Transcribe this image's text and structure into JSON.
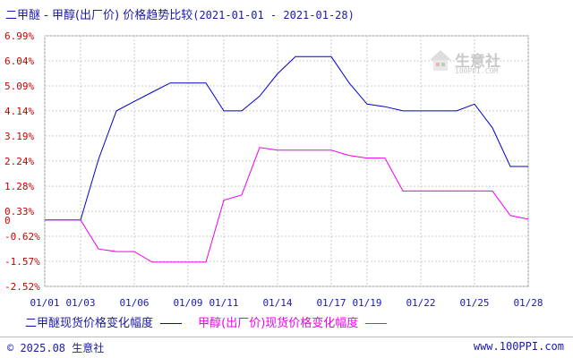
{
  "header": {
    "title": "二甲醚 - 甲醇(出厂价) 价格趋势比较",
    "date_range": "(2021-01-01 - 2021-01-28)"
  },
  "watermark": {
    "name": "生意社",
    "url": "100PPI.COM"
  },
  "legend": [
    {
      "label": "二甲醚现货价格变化幅度",
      "color": "#0000cc"
    },
    {
      "label": "甲醇(出厂价)现货价格变化幅度",
      "color": "#ee00ee"
    }
  ],
  "footer": {
    "copyright": "© 2025.08 生意社",
    "website": "www.100PPI.com"
  },
  "chart_data": {
    "type": "line",
    "title": "二甲醚 - 甲醇(出厂价) 价格趋势比较",
    "xlabel": "",
    "ylabel": "",
    "y_ticks": [
      "6.99%",
      "6.04%",
      "5.09%",
      "4.14%",
      "3.19%",
      "2.24%",
      "1.28%",
      "0.33%",
      "-0.62%",
      "-1.57%",
      "-2.52%"
    ],
    "y_zero_label": "0",
    "ylim": [
      -2.52,
      6.99
    ],
    "x_ticks": [
      "01/01",
      "01/03",
      "01/06",
      "01/09",
      "01/11",
      "01/14",
      "01/17",
      "01/19",
      "01/22",
      "01/25",
      "01/28"
    ],
    "x_dates": [
      "2021-01-01",
      "2021-01-02",
      "2021-01-03",
      "2021-01-04",
      "2021-01-05",
      "2021-01-06",
      "2021-01-07",
      "2021-01-08",
      "2021-01-09",
      "2021-01-10",
      "2021-01-11",
      "2021-01-12",
      "2021-01-13",
      "2021-01-14",
      "2021-01-15",
      "2021-01-16",
      "2021-01-17",
      "2021-01-18",
      "2021-01-19",
      "2021-01-20",
      "2021-01-21",
      "2021-01-22",
      "2021-01-23",
      "2021-01-24",
      "2021-01-25",
      "2021-01-26",
      "2021-01-27",
      "2021-01-28"
    ],
    "grid": true,
    "series": [
      {
        "name": "二甲醚现货价格变化幅度",
        "color": "#0000cc",
        "values": [
          0,
          0,
          0,
          2.3,
          4.14,
          4.5,
          4.85,
          5.2,
          5.2,
          5.2,
          4.14,
          4.14,
          4.7,
          5.55,
          6.2,
          6.2,
          6.2,
          5.2,
          4.4,
          4.3,
          4.14,
          4.14,
          4.14,
          4.14,
          4.4,
          3.5,
          2.03,
          2.03
        ]
      },
      {
        "name": "甲醇(出厂价)现货价格变化幅度",
        "color": "#ee00ee",
        "values": [
          0,
          0,
          0,
          -1.1,
          -1.2,
          -1.2,
          -1.6,
          -1.6,
          -1.6,
          -1.6,
          0.75,
          0.95,
          2.75,
          2.65,
          2.65,
          2.65,
          2.65,
          2.45,
          2.35,
          2.35,
          1.1,
          1.1,
          1.1,
          1.1,
          1.1,
          1.1,
          0.17,
          0.03
        ]
      }
    ]
  }
}
